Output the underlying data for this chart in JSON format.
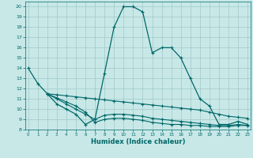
{
  "bg_color": "#c8e8e8",
  "grid_color": "#a0c8c8",
  "line_color": "#006868",
  "xlabel": "Humidex (Indice chaleur)",
  "xlim": [
    0,
    23
  ],
  "ylim": [
    8,
    20.5
  ],
  "xticks": [
    0,
    1,
    2,
    3,
    4,
    5,
    6,
    7,
    8,
    9,
    10,
    11,
    12,
    13,
    14,
    15,
    16,
    17,
    18,
    19,
    20,
    21,
    22,
    23
  ],
  "yticks": [
    8,
    9,
    10,
    11,
    12,
    13,
    14,
    15,
    16,
    17,
    18,
    19,
    20
  ],
  "main_x": [
    0,
    1,
    2,
    3,
    4,
    5,
    6,
    7,
    8,
    9,
    10,
    11,
    12,
    13,
    14,
    15,
    16,
    17,
    18,
    19,
    20,
    21,
    22,
    23
  ],
  "main_y": [
    14,
    12.5,
    11.5,
    10.5,
    10.0,
    9.5,
    8.5,
    9.0,
    13.5,
    18.0,
    20.0,
    20.0,
    19.5,
    15.5,
    16.0,
    16.0,
    15.0,
    13.0,
    11.0,
    10.3,
    8.5,
    8.5,
    8.8,
    8.5
  ],
  "flat1_x": [
    2,
    3,
    4,
    5,
    6,
    7,
    8,
    9,
    10,
    11,
    12,
    13,
    14,
    15,
    16,
    17,
    18,
    19,
    20,
    21,
    22,
    23
  ],
  "flat1_y": [
    11.5,
    11.4,
    11.3,
    11.2,
    11.1,
    11.0,
    10.9,
    10.8,
    10.7,
    10.6,
    10.5,
    10.4,
    10.3,
    10.2,
    10.1,
    10.0,
    9.9,
    9.7,
    9.5,
    9.3,
    9.2,
    9.1
  ],
  "flat2_x": [
    2,
    3,
    4,
    5,
    6,
    7,
    8,
    9,
    10,
    11,
    12,
    13,
    14,
    15,
    16,
    17,
    18,
    19,
    20,
    21,
    22,
    23
  ],
  "flat2_y": [
    11.5,
    11.0,
    10.5,
    10.0,
    9.5,
    9.0,
    9.4,
    9.5,
    9.5,
    9.4,
    9.3,
    9.1,
    9.0,
    8.9,
    8.8,
    8.7,
    8.6,
    8.5,
    8.4,
    8.4,
    8.5,
    8.4
  ],
  "flat3_x": [
    2,
    3,
    4,
    5,
    6,
    7,
    8,
    9,
    10,
    11,
    12,
    13,
    14,
    15,
    16,
    17,
    18,
    19,
    20,
    21,
    22,
    23
  ],
  "flat3_y": [
    11.5,
    11.1,
    10.7,
    10.3,
    9.7,
    8.7,
    9.0,
    9.1,
    9.1,
    9.0,
    8.9,
    8.7,
    8.6,
    8.5,
    8.5,
    8.4,
    8.4,
    8.3,
    8.3,
    8.3,
    8.4,
    8.4
  ]
}
